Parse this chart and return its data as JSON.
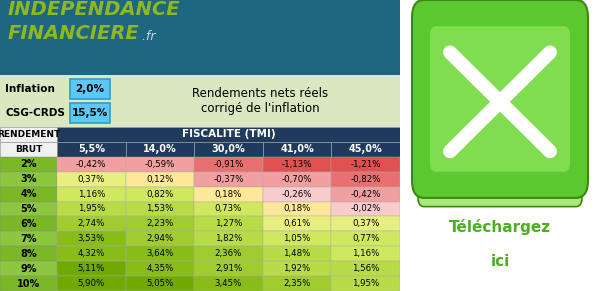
{
  "title_line1": "INDEPENDANCE",
  "title_line2": "FINANCIERE",
  "title_suffix": " .fr",
  "header_bg": "#1f6680",
  "inflation_label": "Inflation",
  "inflation_value": "2,0%",
  "csgcrds_label": "CSG-CRDS",
  "csgcrds_value": "15,5%",
  "rendement_label": "Rendements nets réels\ncorrigé de l'inflation",
  "table_header1": "RENDEMENT",
  "table_header2": "BRUT",
  "fiscalite_label": "FISCALITE (TMI)",
  "tmi_cols": [
    "5,5%",
    "14,0%",
    "30,0%",
    "41,0%",
    "45,0%"
  ],
  "row_labels": [
    "2%",
    "3%",
    "4%",
    "5%",
    "6%",
    "7%",
    "8%",
    "9%",
    "10%"
  ],
  "values": [
    [
      "-0,42%",
      "-0,59%",
      "-0,91%",
      "-1,13%",
      "-1,21%"
    ],
    [
      "0,37%",
      "0,12%",
      "-0,37%",
      "-0,70%",
      "-0,82%"
    ],
    [
      "1,16%",
      "0,82%",
      "0,18%",
      "-0,26%",
      "-0,42%"
    ],
    [
      "1,95%",
      "1,53%",
      "0,73%",
      "0,18%",
      "-0,02%"
    ],
    [
      "2,74%",
      "2,23%",
      "1,27%",
      "0,61%",
      "0,37%"
    ],
    [
      "3,53%",
      "2,94%",
      "1,82%",
      "1,05%",
      "0,77%"
    ],
    [
      "4,32%",
      "3,64%",
      "2,36%",
      "1,48%",
      "1,16%"
    ],
    [
      "5,11%",
      "4,35%",
      "2,91%",
      "1,92%",
      "1,56%"
    ],
    [
      "5,90%",
      "5,05%",
      "3,45%",
      "2,35%",
      "1,95%"
    ]
  ],
  "numeric_values": [
    [
      -0.42,
      -0.59,
      -0.91,
      -1.13,
      -1.21
    ],
    [
      0.37,
      0.12,
      -0.37,
      -0.7,
      -0.82
    ],
    [
      1.16,
      0.82,
      0.18,
      -0.26,
      -0.42
    ],
    [
      1.95,
      1.53,
      0.73,
      0.18,
      -0.02
    ],
    [
      2.74,
      2.23,
      1.27,
      0.61,
      0.37
    ],
    [
      3.53,
      2.94,
      1.82,
      1.05,
      0.77
    ],
    [
      4.32,
      3.64,
      2.36,
      1.48,
      1.16
    ],
    [
      5.11,
      4.35,
      2.91,
      1.92,
      1.56
    ],
    [
      5.9,
      5.05,
      3.45,
      2.35,
      1.95
    ]
  ],
  "col_label_bg": "#1f3a5c",
  "info_bg": "#d9e8c0",
  "input_bg": "#5bc8f5",
  "input_border": "#3399cc",
  "row_colors": [
    "#7ab828",
    "#8dc63f"
  ],
  "telechargez_color": "#4caf20",
  "cell_colors": {
    "very_neg": "#e05050",
    "neg_hi": "#e87070",
    "neg_mid": "#f0a0a0",
    "neg_lo": "#f8cccc",
    "zero": "#fde89a",
    "pos_lo": "#e8ee80",
    "pos_mid": "#c8e060",
    "pos_hi": "#a8d040",
    "pos_vhi": "#88c020",
    "pos_max": "#68aa00"
  }
}
